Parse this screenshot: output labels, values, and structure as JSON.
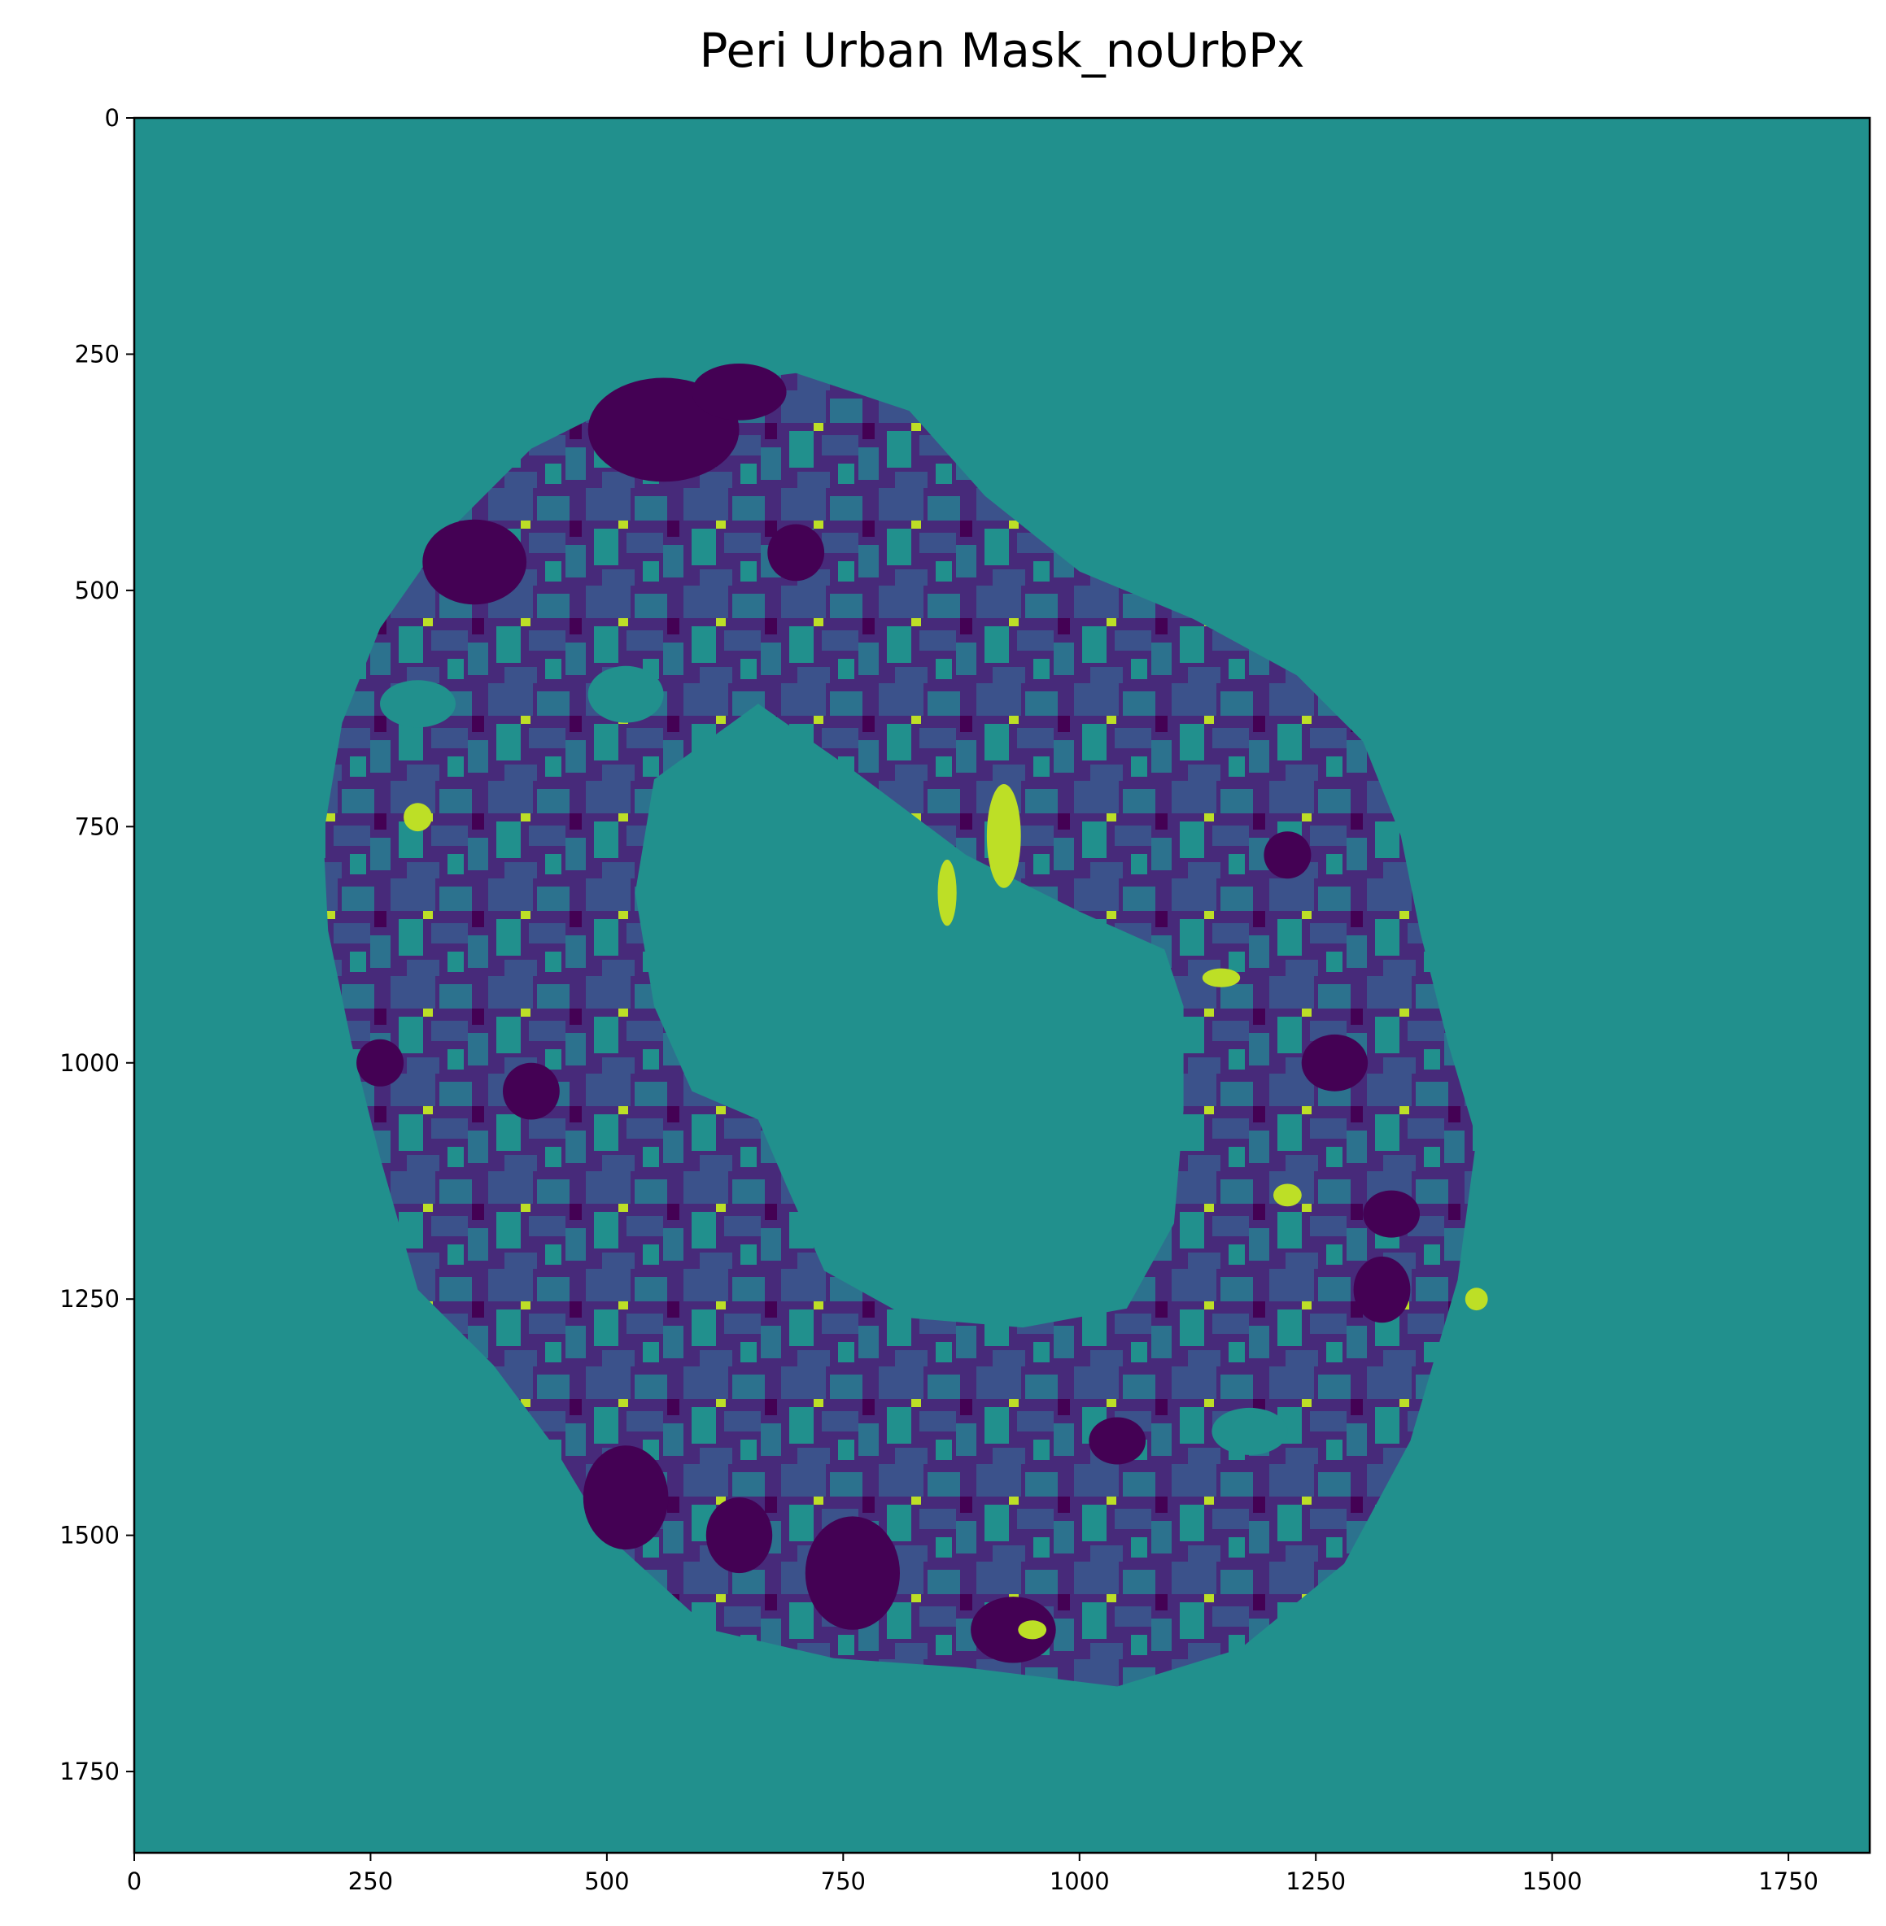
{
  "chart_data": {
    "type": "heatmap",
    "title": "Peri Urban Mask_noUrbPx",
    "xlabel": "",
    "ylabel": "",
    "xlim": [
      0,
      1836
    ],
    "ylim": [
      1836,
      0
    ],
    "x_ticks": [
      0,
      250,
      500,
      750,
      1000,
      1250,
      1500,
      1750
    ],
    "y_ticks": [
      0,
      250,
      500,
      750,
      1000,
      1250,
      1500,
      1750
    ],
    "x_tick_labels": [
      "0",
      "250",
      "500",
      "750",
      "1000",
      "1250",
      "1500",
      "1750"
    ],
    "y_tick_labels": [
      "0",
      "250",
      "500",
      "750",
      "1000",
      "1250",
      "1500",
      "1750"
    ],
    "colormap": "viridis",
    "background_color": "#21908d",
    "colors": {
      "background": "#21908d",
      "dark_purple": "#440154",
      "indigo": "#472a7a",
      "blue": "#3b528b",
      "teal_blue": "#2c728e",
      "teal": "#21908d",
      "green_teal": "#27ad81",
      "yellow_green": "#bddf26"
    },
    "ring": {
      "center": [
        960,
        960
      ],
      "outer_radius_approx": 560,
      "inner_hole": "central teal region"
    }
  }
}
